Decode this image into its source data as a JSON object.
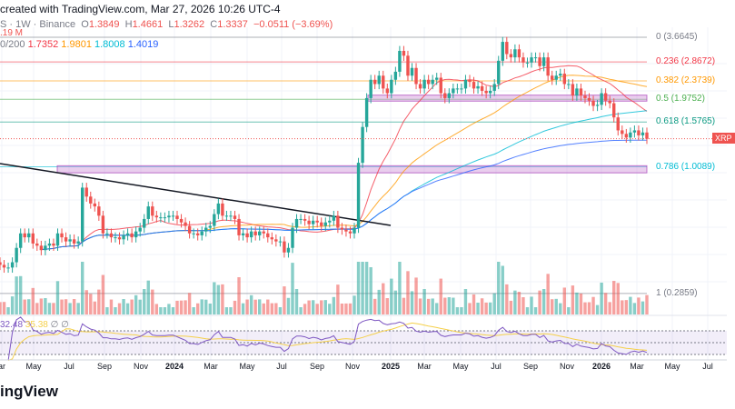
{
  "header": {
    "title": "created with TradingView.com, Mar 27, 2026 10:26 UTC-4"
  },
  "legend": {
    "symbol": "S · 1W · Binance",
    "open_label": "O",
    "open": "1.3849",
    "high_label": "H",
    "high": "1.4661",
    "low_label": "L",
    "low": "1.3262",
    "close_label": "C",
    "close": "1.3337",
    "change": "−0.0511 (−3.69%)",
    "volume": ".19 M",
    "ma_label": "0/200",
    "ma_values": [
      {
        "value": "1.7352",
        "color": "#f23645"
      },
      {
        "value": "1.9801",
        "color": "#ff9800"
      },
      {
        "value": "1.8008",
        "color": "#00bcd4"
      },
      {
        "value": "1.4019",
        "color": "#2962ff"
      }
    ],
    "rsi_values": [
      {
        "value": "32.48",
        "color": "#7e57c2"
      },
      {
        "value": "35.38",
        "color": "#f5d04a"
      },
      {
        "value": "∅",
        "color": "#787b86"
      },
      {
        "value": "∅",
        "color": "#787b86"
      }
    ]
  },
  "price_tag": "XRP",
  "logo": "ingView",
  "colors": {
    "up": "#26a69a",
    "down": "#ef5350",
    "zone": "#ce93d8",
    "rsi": "#7e57c2",
    "rsi_ma": "#f5d04a"
  },
  "chart_data": {
    "type": "candlestick",
    "interval": "1W",
    "y_scale": "log",
    "grid": true,
    "closes": [
      0.38,
      0.37,
      0.37,
      0.39,
      0.45,
      0.52,
      0.5,
      0.52,
      0.47,
      0.46,
      0.44,
      0.46,
      0.47,
      0.46,
      0.52,
      0.5,
      0.48,
      0.49,
      0.47,
      0.48,
      0.82,
      0.75,
      0.7,
      0.68,
      0.62,
      0.52,
      0.52,
      0.5,
      0.5,
      0.49,
      0.51,
      0.52,
      0.5,
      0.53,
      0.55,
      0.6,
      0.68,
      0.62,
      0.61,
      0.61,
      0.61,
      0.62,
      0.62,
      0.6,
      0.58,
      0.56,
      0.52,
      0.52,
      0.51,
      0.53,
      0.55,
      0.56,
      0.63,
      0.7,
      0.62,
      0.62,
      0.62,
      0.6,
      0.51,
      0.52,
      0.5,
      0.53,
      0.51,
      0.53,
      0.52,
      0.5,
      0.49,
      0.48,
      0.48,
      0.43,
      0.45,
      0.55,
      0.6,
      0.6,
      0.59,
      0.57,
      0.59,
      0.58,
      0.56,
      0.58,
      0.59,
      0.62,
      0.55,
      0.54,
      0.53,
      0.52,
      0.55,
      1.05,
      1.5,
      2.0,
      2.4,
      2.3,
      2.5,
      2.2,
      2.1,
      2.4,
      2.6,
      3.2,
      3.05,
      2.5,
      2.7,
      2.3,
      2.2,
      2.4,
      2.3,
      2.4,
      2.45,
      2.1,
      2.0,
      2.1,
      2.2,
      2.2,
      2.2,
      2.4,
      2.35,
      2.2,
      2.25,
      2.15,
      2.1,
      2.15,
      2.3,
      2.9,
      3.5,
      3.1,
      3.0,
      3.25,
      3.0,
      2.85,
      2.85,
      3.0,
      3.0,
      2.75,
      3.0,
      2.5,
      2.4,
      2.5,
      2.55,
      2.3,
      2.3,
      2.05,
      2.2,
      2.05,
      2.0,
      1.95,
      1.85,
      1.87,
      2.1,
      1.95,
      1.9,
      1.65,
      1.45,
      1.4,
      1.35,
      1.42,
      1.45,
      1.38,
      1.42,
      1.3337
    ],
    "fib_levels": [
      {
        "label": "0 (3.6645)",
        "price": 3.6645,
        "color": "#787b86"
      },
      {
        "label": "0.236 (2.8672)",
        "price": 2.8672,
        "color": "#f23645"
      },
      {
        "label": "0.382 (2.3739)",
        "price": 2.3739,
        "color": "#ff9800"
      },
      {
        "label": "0.5 (1.9752)",
        "price": 1.9752,
        "color": "#4caf50"
      },
      {
        "label": "0.618 (1.5765)",
        "price": 1.5765,
        "color": "#089981"
      },
      {
        "label": "0.786 (1.0089)",
        "price": 1.0089,
        "color": "#00bcd4"
      },
      {
        "label": "1 (0.2859)",
        "price": 0.2859,
        "color": "#787b86"
      }
    ],
    "zones": [
      {
        "low": 1.94,
        "high": 2.06
      },
      {
        "low": 0.95,
        "high": 1.02
      }
    ],
    "moving_averages": [
      20,
      50,
      100,
      200
    ],
    "rsi_levels": [
      70,
      50,
      30
    ],
    "x_ticks": [
      {
        "label": "ar",
        "bold": false
      },
      {
        "label": "May",
        "bold": false
      },
      {
        "label": "Jul",
        "bold": false
      },
      {
        "label": "Sep",
        "bold": false
      },
      {
        "label": "Nov",
        "bold": false
      },
      {
        "label": "2024",
        "bold": true
      },
      {
        "label": "Mar",
        "bold": false
      },
      {
        "label": "May",
        "bold": false
      },
      {
        "label": "Jul",
        "bold": false
      },
      {
        "label": "Sep",
        "bold": false
      },
      {
        "label": "Nov",
        "bold": false
      },
      {
        "label": "2025",
        "bold": true
      },
      {
        "label": "Mar",
        "bold": false
      },
      {
        "label": "May",
        "bold": false
      },
      {
        "label": "Jul",
        "bold": false
      },
      {
        "label": "Sep",
        "bold": false
      },
      {
        "label": "Nov",
        "bold": false
      },
      {
        "label": "2026",
        "bold": true
      },
      {
        "label": "Mar",
        "bold": false
      },
      {
        "label": "May",
        "bold": false
      },
      {
        "label": "Jul",
        "bold": false
      }
    ]
  }
}
